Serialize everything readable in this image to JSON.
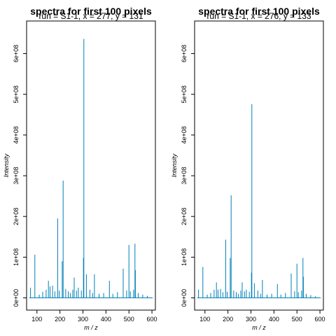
{
  "chart_data": [
    {
      "type": "line",
      "title": "spectra for first 100 pixels",
      "subtitle": "run = S1-1, x = 277, y = 131",
      "xlabel": "m / z",
      "ylabel": "Intensity",
      "xlim": [
        55,
        615
      ],
      "ylim": [
        -30000000,
        680000000
      ],
      "xticks": [
        100,
        200,
        300,
        400,
        500,
        600
      ],
      "xtick_labels": [
        "100",
        "200",
        "300",
        "400",
        "500",
        "600"
      ],
      "yticks": [
        0,
        100000000,
        200000000,
        300000000,
        400000000,
        500000000,
        600000000
      ],
      "ytick_labels": [
        "0e+00",
        "1e+08",
        "2e+08",
        "3e+08",
        "4e+08",
        "5e+08",
        "6e+08"
      ],
      "line_color": "#0080b8",
      "series": [
        {
          "peaks": [
            [
              72,
              25000000
            ],
            [
              91,
              106000000
            ],
            [
              110,
              8000000
            ],
            [
              125,
              15000000
            ],
            [
              140,
              20000000
            ],
            [
              150,
              42000000
            ],
            [
              157,
              28000000
            ],
            [
              168,
              30000000
            ],
            [
              178,
              16000000
            ],
            [
              190,
              195000000
            ],
            [
              197,
              18000000
            ],
            [
              210,
              90000000
            ],
            [
              214,
              288000000
            ],
            [
              225,
              22000000
            ],
            [
              236,
              16000000
            ],
            [
              245,
              12000000
            ],
            [
              256,
              20000000
            ],
            [
              262,
              50000000
            ],
            [
              272,
              18000000
            ],
            [
              280,
              25000000
            ],
            [
              293,
              18000000
            ],
            [
              302,
              98000000
            ],
            [
              304,
              636000000
            ],
            [
              315,
              58000000
            ],
            [
              330,
              20000000
            ],
            [
              342,
              12000000
            ],
            [
              350,
              58000000
            ],
            [
              370,
              10000000
            ],
            [
              390,
              12000000
            ],
            [
              415,
              42000000
            ],
            [
              430,
              10000000
            ],
            [
              450,
              14000000
            ],
            [
              475,
              72000000
            ],
            [
              490,
              18000000
            ],
            [
              500,
              130000000
            ],
            [
              506,
              16000000
            ],
            [
              520,
              20000000
            ],
            [
              526,
              133000000
            ],
            [
              528,
              68000000
            ],
            [
              540,
              12000000
            ],
            [
              560,
              8000000
            ],
            [
              580,
              5000000
            ]
          ]
        }
      ]
    },
    {
      "type": "line",
      "title": "spectra for first 100 pixels",
      "subtitle": "run = S1-1, x = 276, y = 133",
      "xlabel": "m / z",
      "ylabel": "Intensity",
      "xlim": [
        55,
        615
      ],
      "ylim": [
        -30000000,
        680000000
      ],
      "xticks": [
        100,
        200,
        300,
        400,
        500,
        600
      ],
      "xtick_labels": [
        "100",
        "200",
        "300",
        "400",
        "500",
        "600"
      ],
      "yticks": [
        0,
        100000000,
        200000000,
        300000000,
        400000000,
        500000000,
        600000000
      ],
      "ytick_labels": [
        "0e+00",
        "1e+08",
        "2e+08",
        "3e+08",
        "4e+08",
        "5e+08",
        "6e+08"
      ],
      "line_color": "#0080b8",
      "series": [
        {
          "peaks": [
            [
              72,
              20000000
            ],
            [
              91,
              76000000
            ],
            [
              110,
              8000000
            ],
            [
              125,
              12000000
            ],
            [
              140,
              20000000
            ],
            [
              150,
              38000000
            ],
            [
              157,
              20000000
            ],
            [
              168,
              22000000
            ],
            [
              178,
              14000000
            ],
            [
              190,
              143000000
            ],
            [
              197,
              15000000
            ],
            [
              210,
              98000000
            ],
            [
              214,
              252000000
            ],
            [
              225,
              18000000
            ],
            [
              236,
              14000000
            ],
            [
              245,
              10000000
            ],
            [
              256,
              18000000
            ],
            [
              262,
              38000000
            ],
            [
              272,
              16000000
            ],
            [
              280,
              20000000
            ],
            [
              293,
              15000000
            ],
            [
              302,
              62000000
            ],
            [
              304,
              476000000
            ],
            [
              315,
              36000000
            ],
            [
              330,
              18000000
            ],
            [
              342,
              10000000
            ],
            [
              350,
              44000000
            ],
            [
              370,
              8000000
            ],
            [
              390,
              10000000
            ],
            [
              415,
              34000000
            ],
            [
              430,
              8000000
            ],
            [
              450,
              12000000
            ],
            [
              475,
              60000000
            ],
            [
              490,
              16000000
            ],
            [
              500,
              84000000
            ],
            [
              506,
              14000000
            ],
            [
              520,
              18000000
            ],
            [
              526,
              98000000
            ],
            [
              528,
              52000000
            ],
            [
              540,
              10000000
            ],
            [
              560,
              7000000
            ],
            [
              580,
              4000000
            ]
          ]
        }
      ]
    }
  ]
}
